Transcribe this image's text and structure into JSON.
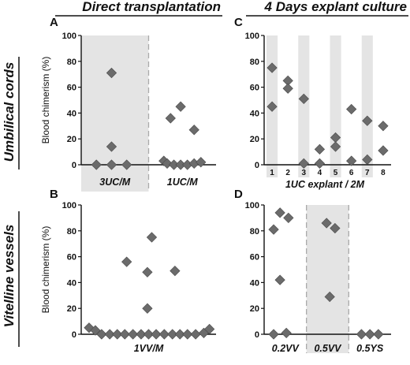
{
  "headings": {
    "left": "Direct transplantation",
    "right": "4 Days explant culture"
  },
  "row_labels": {
    "top": "Umbilical cords",
    "bottom": "Vitelline vessels"
  },
  "colors": {
    "marker": "#6b6b6b",
    "shade": "#e4e4e4",
    "axis": "#111111",
    "divider": "#aaaaaa"
  },
  "chart_data": [
    {
      "panel": "A",
      "type": "scatter",
      "ylabel": "Blood chimerism (%)",
      "ylim": [
        0,
        100
      ],
      "yticks": [
        0,
        20,
        40,
        60,
        80,
        100
      ],
      "categories": [
        "3UC/M",
        "1UC/M"
      ],
      "shaded_categories": [
        0
      ],
      "dashed_divider": true,
      "groups": [
        {
          "category": "3UC/M",
          "points": [
            [
              -0.55,
              0
            ],
            [
              -0.1,
              71
            ],
            [
              -0.1,
              14
            ],
            [
              0.35,
              0
            ],
            [
              -0.1,
              0
            ]
          ]
        },
        {
          "category": "1UC/M",
          "points": [
            [
              -0.55,
              3
            ],
            [
              -0.35,
              36
            ],
            [
              -0.05,
              45
            ],
            [
              0.35,
              27
            ],
            [
              -0.45,
              1
            ],
            [
              -0.25,
              0
            ],
            [
              -0.05,
              0
            ],
            [
              0.15,
              0
            ],
            [
              0.35,
              1
            ],
            [
              0.55,
              2
            ]
          ]
        }
      ]
    },
    {
      "panel": "B",
      "type": "scatter",
      "ylabel": "Blood chimerism (%)",
      "ylim": [
        0,
        100
      ],
      "yticks": [
        0,
        20,
        40,
        60,
        80,
        100
      ],
      "categories": [
        "1VV/M"
      ],
      "points": [
        [
          -0.95,
          5
        ],
        [
          -0.85,
          3
        ],
        [
          -0.75,
          0
        ],
        [
          -0.62,
          0
        ],
        [
          -0.5,
          0
        ],
        [
          -0.38,
          0
        ],
        [
          -0.25,
          0
        ],
        [
          -0.12,
          0
        ],
        [
          0,
          0
        ],
        [
          0.12,
          0
        ],
        [
          0.25,
          0
        ],
        [
          0.38,
          0
        ],
        [
          0.5,
          0
        ],
        [
          0.62,
          0
        ],
        [
          0.75,
          0
        ],
        [
          0.88,
          1
        ],
        [
          0.97,
          4
        ],
        [
          -0.35,
          56
        ],
        [
          0.05,
          75
        ],
        [
          -0.02,
          48
        ],
        [
          -0.02,
          20
        ],
        [
          0.42,
          49
        ]
      ]
    },
    {
      "panel": "C",
      "type": "scatter",
      "xlabel": "1UC explant / 2M",
      "ylim": [
        0,
        100
      ],
      "yticks": [
        0,
        20,
        40,
        60,
        80,
        100
      ],
      "categories": [
        "1",
        "2",
        "3",
        "4",
        "5",
        "6",
        "7",
        "8"
      ],
      "shaded_categories": [
        0,
        2,
        4,
        6
      ],
      "groups": [
        {
          "category": "1",
          "values": [
            75,
            45
          ]
        },
        {
          "category": "2",
          "values": [
            65,
            59
          ]
        },
        {
          "category": "3",
          "values": [
            51,
            1
          ]
        },
        {
          "category": "4",
          "values": [
            12,
            1
          ]
        },
        {
          "category": "5",
          "values": [
            21,
            14
          ]
        },
        {
          "category": "6",
          "values": [
            43,
            3
          ]
        },
        {
          "category": "7",
          "values": [
            34,
            4
          ]
        },
        {
          "category": "8",
          "values": [
            30,
            11
          ]
        }
      ]
    },
    {
      "panel": "D",
      "type": "scatter",
      "ylim": [
        0,
        100
      ],
      "yticks": [
        0,
        20,
        40,
        60,
        80,
        100
      ],
      "categories": [
        "0.2VV",
        "0.5VV",
        "0.5YS"
      ],
      "shaded_categories": [
        1
      ],
      "dashed_dividers": true,
      "groups": [
        {
          "category": "0.2VV",
          "points": [
            [
              -0.55,
              81
            ],
            [
              -0.25,
              94
            ],
            [
              0.15,
              90
            ],
            [
              -0.25,
              42
            ],
            [
              -0.55,
              0
            ],
            [
              0.05,
              1
            ]
          ]
        },
        {
          "category": "0.5VV",
          "points": [
            [
              -0.05,
              86
            ],
            [
              0.35,
              82
            ],
            [
              0.1,
              29
            ]
          ]
        },
        {
          "category": "0.5YS",
          "points": [
            [
              -0.4,
              0
            ],
            [
              0.0,
              0
            ],
            [
              0.4,
              0
            ]
          ]
        }
      ]
    }
  ]
}
